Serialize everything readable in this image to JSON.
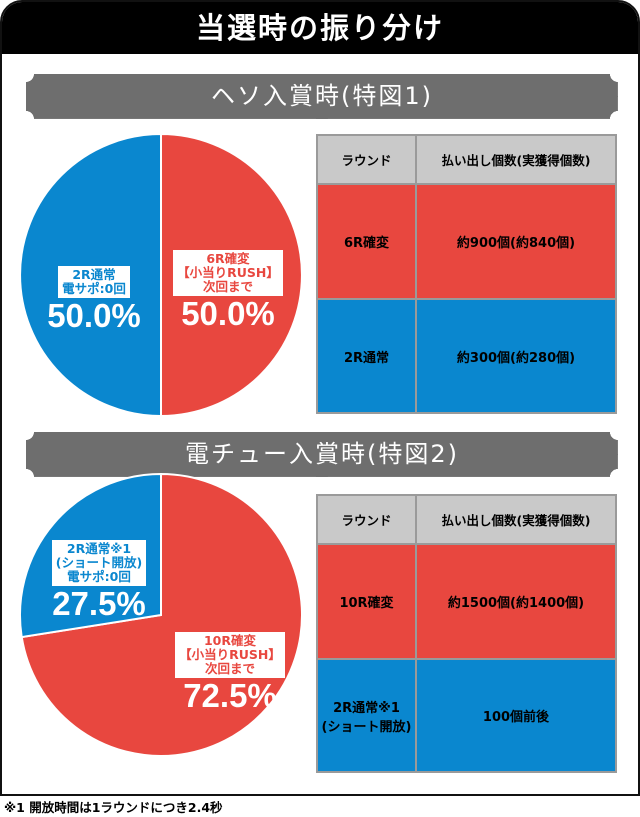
{
  "title": "当選時の振り分け",
  "colors": {
    "red": "#e8473f",
    "blue": "#0a87cf",
    "banner": "#6e6e6e"
  },
  "sections": [
    {
      "banner": "ヘソ入賞時(特図1)",
      "table": {
        "headers": [
          "ラウンド",
          "払い出し個数(実獲得個数)"
        ],
        "rows": [
          [
            "6R確変",
            "約900個(約840個)"
          ],
          [
            "2R通常",
            "約300個(約280個)"
          ]
        ]
      }
    },
    {
      "banner": "電チュー入賞時(特図2)",
      "table": {
        "headers": [
          "ラウンド",
          "払い出し個数(実獲得個数)"
        ],
        "rows": [
          [
            "10R確変",
            "約1500個(約1400個)"
          ],
          [
            "2R通常※1\n(ショート開放)",
            "100個前後"
          ]
        ]
      }
    }
  ],
  "chart_data": [
    {
      "type": "pie",
      "slices": [
        {
          "label": [
            "6R確変",
            "【小当りRUSH】",
            "次回まで"
          ],
          "value": 50.0,
          "display": "50.0%",
          "color": "#e8473f"
        },
        {
          "label": [
            "2R通常",
            "電サポ:0回"
          ],
          "value": 50.0,
          "display": "50.0%",
          "color": "#0a87cf"
        }
      ]
    },
    {
      "type": "pie",
      "slices": [
        {
          "label": [
            "10R確変",
            "【小当りRUSH】",
            "次回まで"
          ],
          "value": 72.5,
          "display": "72.5%",
          "color": "#e8473f"
        },
        {
          "label": [
            "2R通常※1",
            "(ショート開放)",
            "電サポ:0回"
          ],
          "value": 27.5,
          "display": "27.5%",
          "color": "#0a87cf"
        }
      ]
    }
  ],
  "footnote": "※1 開放時間は1ラウンドにつき2.4秒"
}
